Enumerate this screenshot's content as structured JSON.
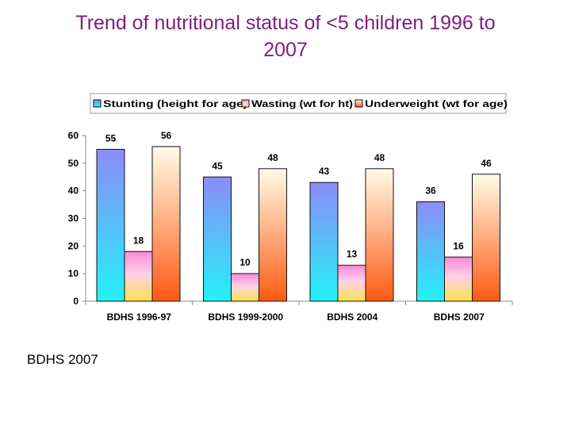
{
  "slide": {
    "title_line1": "Trend of nutritional status of <5 children 1996 to",
    "title_line2": "2007",
    "source": "BDHS 2007"
  },
  "colors": {
    "title": "#7b1f7e",
    "stunting_top": "#8c8cf8",
    "stunting_bottom": "#22f2f8",
    "wasting_top": "#ffffe6",
    "wasting_bottom": "#ffe24a",
    "underweight_top": "#fffce8",
    "underweight_bottom": "#ff5a12"
  },
  "chart_data": {
    "type": "bar",
    "title": "",
    "xlabel": "",
    "ylabel": "",
    "ylim": [
      0,
      60
    ],
    "yticks": [
      0,
      10,
      20,
      30,
      40,
      50,
      60
    ],
    "legend_position": "top",
    "categories": [
      "BDHS 1996-97",
      "BDHS 1999-2000",
      "BDHS 2004",
      "BDHS 2007"
    ],
    "series": [
      {
        "name": "Stunting (height for age)",
        "values": [
          55,
          45,
          43,
          36
        ]
      },
      {
        "name": "Wasting (wt for ht)",
        "values": [
          18,
          10,
          13,
          16
        ]
      },
      {
        "name": "Underweight (wt for age)",
        "values": [
          56,
          48,
          48,
          46
        ]
      }
    ]
  }
}
